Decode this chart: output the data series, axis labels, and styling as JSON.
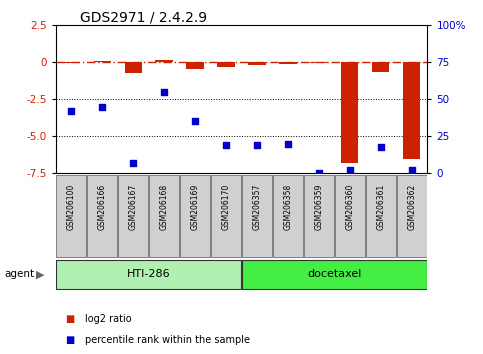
{
  "title": "GDS2971 / 2.4.2.9",
  "samples": [
    "GSM206100",
    "GSM206166",
    "GSM206167",
    "GSM206168",
    "GSM206169",
    "GSM206170",
    "GSM206357",
    "GSM206358",
    "GSM206359",
    "GSM206360",
    "GSM206361",
    "GSM206362"
  ],
  "log2_ratio": [
    -0.05,
    0.05,
    -0.75,
    0.15,
    -0.5,
    -0.35,
    -0.2,
    -0.15,
    -0.05,
    -6.8,
    -0.65,
    -6.5
  ],
  "percentile_rank": [
    42,
    45,
    7,
    55,
    35,
    19,
    19,
    20,
    0,
    2,
    18,
    2
  ],
  "group1_label": "HTI-286",
  "group2_label": "docetaxel",
  "group1_count": 6,
  "group2_count": 6,
  "ylim_left": [
    -7.5,
    2.5
  ],
  "ylim_right": [
    0,
    100
  ],
  "yticks_left": [
    2.5,
    0.0,
    -2.5,
    -5.0,
    -7.5
  ],
  "yticks_right": [
    100,
    75,
    50,
    25,
    0
  ],
  "hlines": [
    -2.5,
    -5.0
  ],
  "bar_color": "#cc2200",
  "dot_color": "#0000cc",
  "group1_bg": "#b0f0b0",
  "group2_bg": "#44ee44",
  "sample_bg": "#d0d0d0",
  "legend_bar_label": "log2 ratio",
  "legend_dot_label": "percentile rank within the sample",
  "agent_label": "agent"
}
